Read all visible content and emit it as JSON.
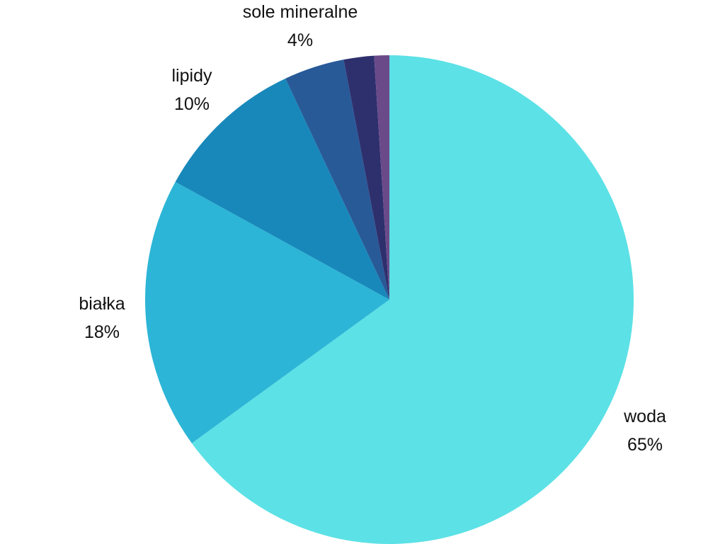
{
  "chart_data": {
    "type": "pie",
    "title": "",
    "slices": [
      {
        "label": "woda",
        "value": 65,
        "value_label": "65%",
        "color": "#5ce1e6"
      },
      {
        "label": "białka",
        "value": 18,
        "value_label": "18%",
        "color": "#2cb5d6"
      },
      {
        "label": "lipidy",
        "value": 10,
        "value_label": "10%",
        "color": "#1888bb"
      },
      {
        "label": "sole mineralne",
        "value": 4,
        "value_label": "4%",
        "color": "#285a98"
      },
      {
        "label": "",
        "value": 2,
        "value_label": "",
        "color": "#2e306e"
      },
      {
        "label": "",
        "value": 1,
        "value_label": "",
        "color": "#6b4a8a"
      }
    ]
  }
}
